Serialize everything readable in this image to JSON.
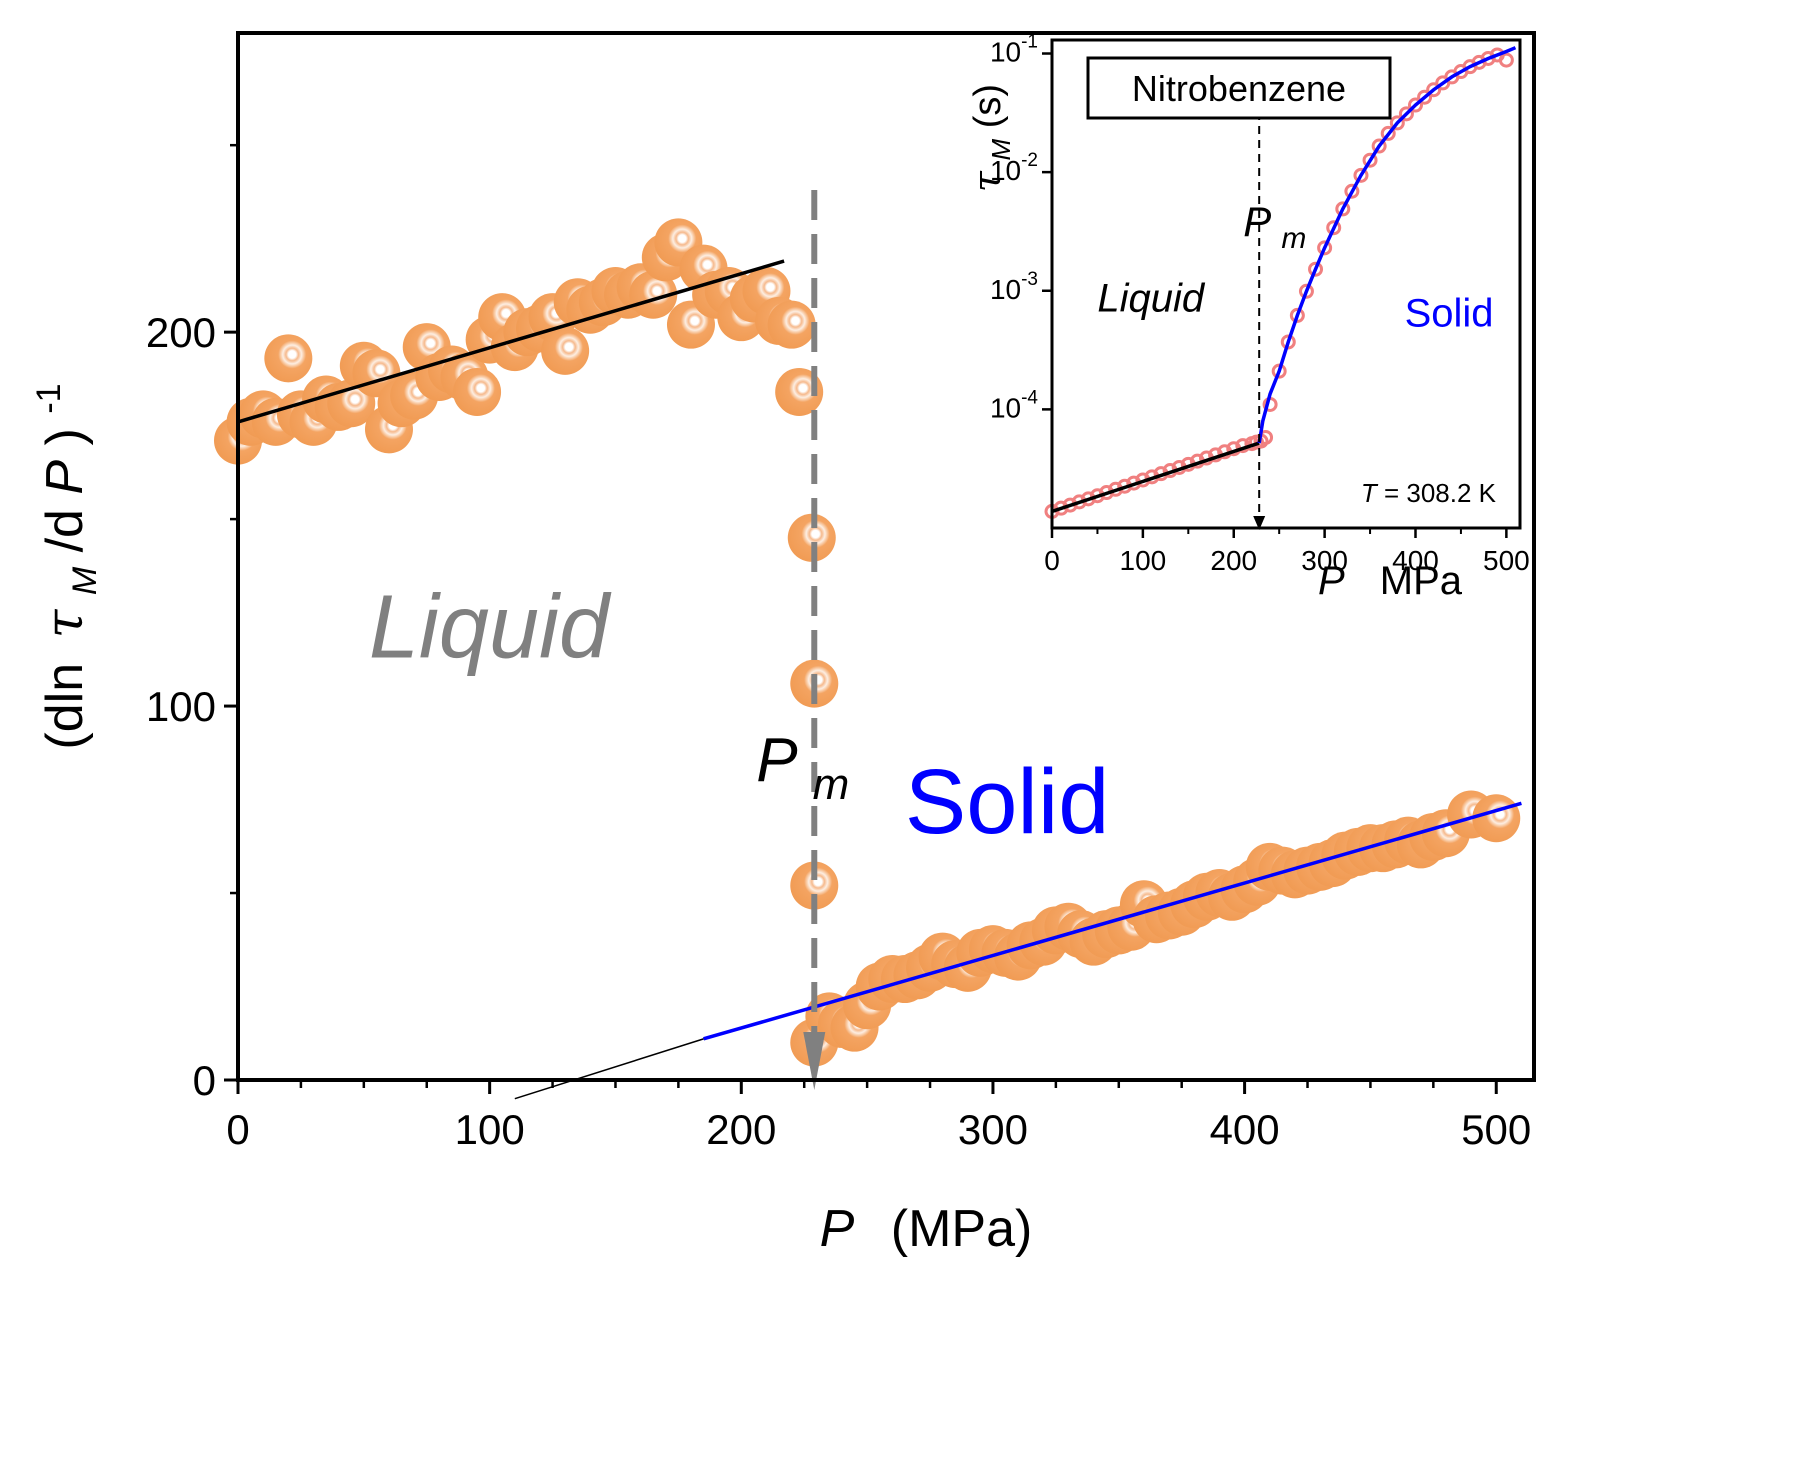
{
  "chart_data": [
    {
      "type": "scatter",
      "xlabel_symbol": "P",
      "xlabel_unit": "(MPa)",
      "ylabel_a": "(dln",
      "ylabel_tau": "τ",
      "ylabel_sub": "M",
      "ylabel_b": " /d",
      "ylabel_P": "P",
      "ylabel_c": ")",
      "ylabel_sup": "-1",
      "xlim": [
        0,
        515
      ],
      "ylim": [
        0,
        280
      ],
      "x_ticks": [
        0,
        100,
        200,
        300,
        400,
        500
      ],
      "x_tick_labels": [
        "0",
        "100",
        "200",
        "300",
        "400",
        "500"
      ],
      "y_ticks": [
        0,
        100,
        200
      ],
      "y_tick_labels": [
        "0",
        "100",
        "200"
      ],
      "y_minor_ticks": [
        50,
        150,
        250
      ],
      "annotations": {
        "liquid": "Liquid",
        "solid": "Solid",
        "pm_symbol": "P",
        "pm_sub": "m"
      },
      "pm_value": 229,
      "series": [
        {
          "marker_color": "#F4A462",
          "x": [
            0,
            5,
            10,
            15,
            20,
            25,
            30,
            35,
            40,
            45,
            50,
            55,
            60,
            65,
            70,
            75,
            80,
            85,
            90,
            95,
            100,
            105,
            110,
            115,
            120,
            125,
            130,
            135,
            140,
            145,
            150,
            155,
            160,
            165,
            170,
            175,
            180,
            185,
            190,
            195,
            200,
            205,
            210,
            215,
            220,
            223,
            228,
            229,
            229,
            229
          ],
          "y": [
            171,
            176,
            178,
            176,
            193,
            178,
            176,
            182,
            180,
            181,
            191,
            189,
            174,
            181,
            183,
            196,
            188,
            190,
            188,
            184,
            198,
            204,
            196,
            200,
            201,
            204,
            195,
            208,
            206,
            208,
            211,
            210,
            212,
            210,
            220,
            224,
            202,
            217,
            210,
            211,
            204,
            209,
            211,
            203,
            202,
            184,
            145,
            106,
            52,
            10
          ]
        },
        {
          "marker_color": "#F4A462",
          "x": [
            235,
            240,
            245,
            250,
            255,
            260,
            265,
            270,
            275,
            280,
            285,
            290,
            295,
            300,
            305,
            310,
            315,
            320,
            325,
            330,
            335,
            340,
            345,
            350,
            355,
            360,
            365,
            370,
            375,
            380,
            385,
            390,
            395,
            400,
            405,
            410,
            415,
            420,
            425,
            430,
            435,
            440,
            445,
            450,
            455,
            460,
            465,
            470,
            475,
            480,
            490,
            500
          ],
          "y": [
            17,
            15,
            14,
            20,
            25,
            27,
            27,
            28,
            30,
            33,
            31,
            30,
            34,
            35,
            34,
            33,
            36,
            37,
            40,
            41,
            39,
            37,
            39,
            40,
            41,
            47,
            43,
            44,
            45,
            47,
            49,
            50,
            49,
            51,
            53,
            57,
            56,
            55,
            56,
            57,
            58,
            60,
            61,
            62,
            62,
            63,
            64,
            63,
            65,
            66,
            71,
            70
          ]
        }
      ],
      "fits": [
        {
          "color": "#000000",
          "x": [
            0,
            217
          ],
          "y": [
            176,
            219
          ]
        },
        {
          "color": "#0000FF",
          "x": [
            185,
            510
          ],
          "y": [
            11,
            74
          ]
        },
        {
          "color": "#000000",
          "x": [
            110,
            185
          ],
          "y": [
            -5,
            11
          ]
        }
      ]
    },
    {
      "type": "line",
      "title": "Nitrobenzene",
      "xlabel_symbol": "P",
      "xlabel_unit": "MPa",
      "ylabel_tau": "τ",
      "ylabel_sub": "M",
      "ylabel_unit": " (s)",
      "y_scale": "log",
      "xlim": [
        0,
        515
      ],
      "ylim": [
        1e-05,
        0.13
      ],
      "x_ticks": [
        0,
        100,
        200,
        300,
        400,
        500
      ],
      "x_tick_labels": [
        "0",
        "100",
        "200",
        "300",
        "400",
        "500"
      ],
      "y_tick_labels": [
        {
          "base": "10",
          "exp": "-4",
          "value": 0.0001
        },
        {
          "base": "10",
          "exp": "-3",
          "value": 0.001
        },
        {
          "base": "10",
          "exp": "-2",
          "value": 0.01
        },
        {
          "base": "10",
          "exp": "-1",
          "value": 0.1
        }
      ],
      "annotations": {
        "liquid": "Liquid",
        "solid": "Solid",
        "pm_symbol": "P",
        "pm_sub": "m",
        "temp_symbol": "T",
        "temp_text": " = 308.2 K"
      },
      "pm_value": 228,
      "series": [
        {
          "marker_color": "#F08080",
          "x": [
            0,
            10,
            20,
            30,
            40,
            50,
            60,
            70,
            80,
            90,
            100,
            110,
            120,
            130,
            140,
            150,
            160,
            170,
            180,
            190,
            200,
            210,
            220,
            225,
            230,
            235,
            240,
            250,
            260,
            270,
            280,
            290,
            300,
            310,
            320,
            330,
            340,
            350,
            360,
            370,
            380,
            390,
            400,
            410,
            420,
            430,
            440,
            450,
            460,
            470,
            480,
            490,
            500
          ],
          "y": [
            1.38e-05,
            1.47e-05,
            1.56e-05,
            1.66e-05,
            1.76e-05,
            1.87e-05,
            1.99e-05,
            2.12e-05,
            2.25e-05,
            2.39e-05,
            2.54e-05,
            2.7e-05,
            2.87e-05,
            3.05e-05,
            3.24e-05,
            3.44e-05,
            3.66e-05,
            3.89e-05,
            4.13e-05,
            4.39e-05,
            4.66e-05,
            4.95e-05,
            5.15e-05,
            5.3e-05,
            5.4e-05,
            5.8e-05,
            0.00011,
            0.00021,
            0.00037,
            0.00062,
            0.00099,
            0.00152,
            0.0023,
            0.0034,
            0.0049,
            0.0069,
            0.0094,
            0.0126,
            0.0166,
            0.0212,
            0.026,
            0.031,
            0.0368,
            0.0428,
            0.0495,
            0.0565,
            0.0635,
            0.0705,
            0.0775,
            0.0842,
            0.0908,
            0.0972,
            0.088
          ]
        }
      ],
      "fits": [
        {
          "color": "#000000",
          "x": [
            0,
            228
          ],
          "y": [
            1.38e-05,
            5.2e-05
          ]
        },
        {
          "color": "#0000FF",
          "x": [
            228,
            232,
            240,
            250,
            260,
            270,
            280,
            290,
            300,
            320,
            340,
            360,
            380,
            400,
            420,
            440,
            460,
            480,
            500,
            510
          ],
          "y": [
            5.2e-05,
            8e-05,
            0.000135,
            0.00021,
            0.00037,
            0.00062,
            0.00099,
            0.00152,
            0.0023,
            0.0049,
            0.0094,
            0.0166,
            0.026,
            0.0368,
            0.0495,
            0.0635,
            0.0775,
            0.0908,
            0.104,
            0.112
          ]
        }
      ]
    }
  ]
}
